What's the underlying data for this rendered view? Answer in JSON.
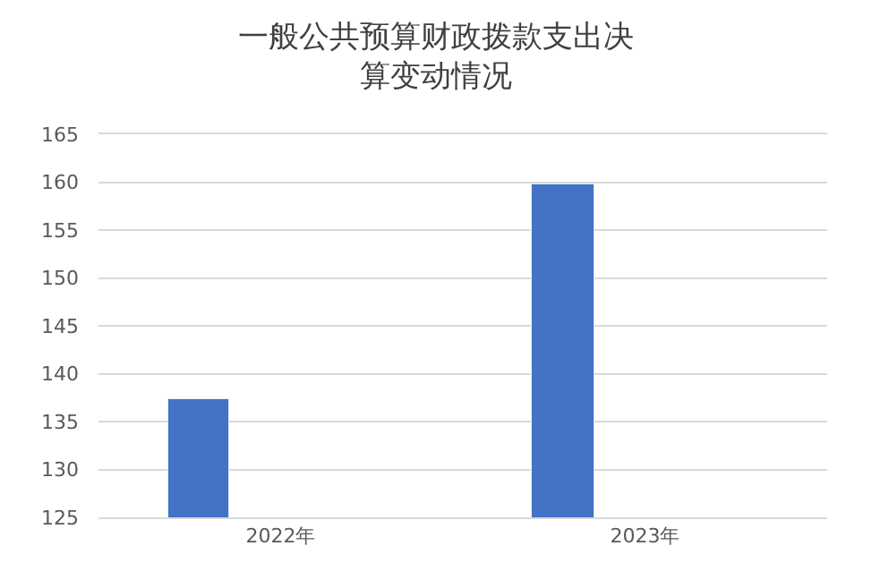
{
  "chart_data": {
    "type": "bar",
    "title": "一般公共预算财政拨款支出决算变动情况",
    "categories": [
      "2022年",
      "2023年"
    ],
    "values": [
      137.3,
      159.7
    ],
    "color": "#4472c4",
    "ylim": [
      125,
      165
    ],
    "yticks": [
      125,
      130,
      135,
      140,
      145,
      150,
      155,
      160,
      165
    ],
    "grid": "y"
  }
}
